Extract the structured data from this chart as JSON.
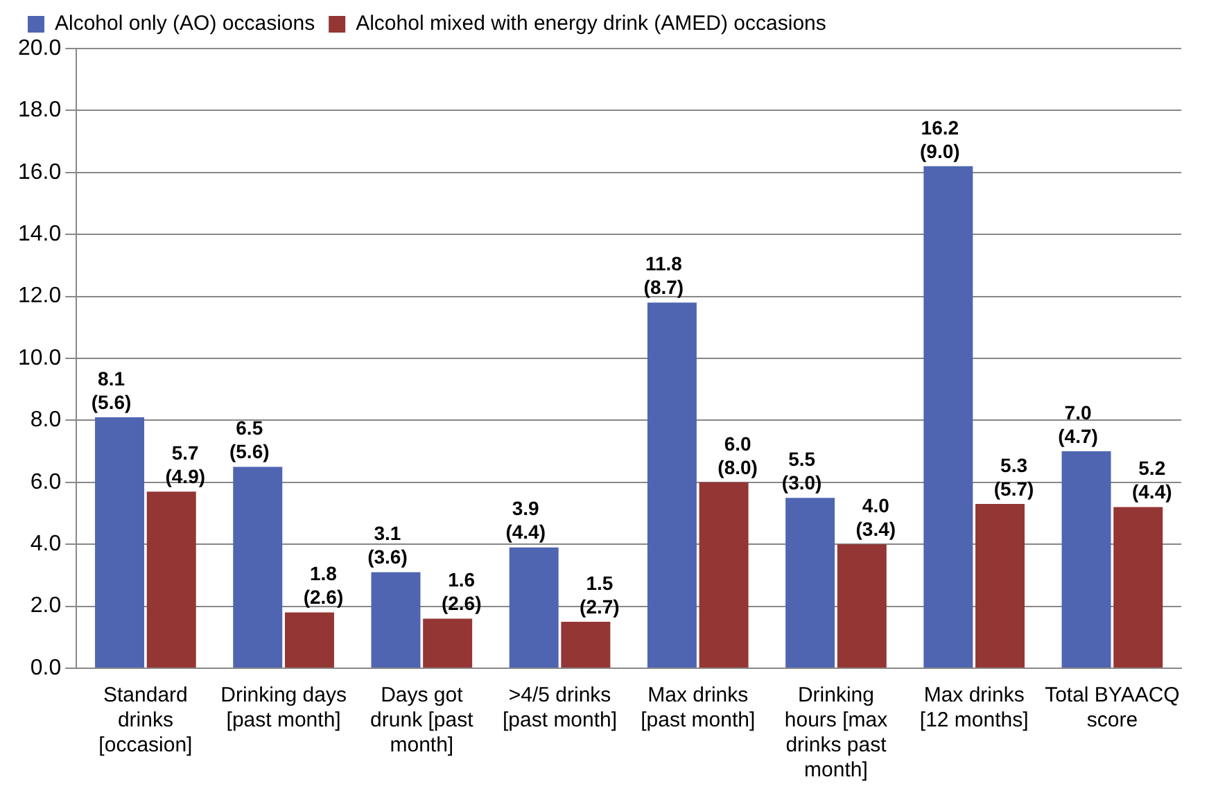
{
  "chart_data": {
    "type": "bar",
    "categories": [
      "Standard drinks [occasion]",
      "Drinking days [past month]",
      "Days got drunk [past month]",
      ">4/5 drinks [past month]",
      "Max drinks [past month]",
      "Drinking hours [max drinks past month]",
      "Max drinks [12 months]",
      "Total BYAACQ score"
    ],
    "series": [
      {
        "name": "Alcohol only (AO) occasions",
        "color": "#4f65b1",
        "values": [
          8.1,
          6.5,
          3.1,
          3.9,
          11.8,
          5.5,
          16.2,
          7.0
        ],
        "value_labels": [
          "8.1 (5.6)",
          "6.5 (5.6)",
          "3.1 (3.6)",
          "3.9 (4.4)",
          "11.8 (8.7)",
          "5.5 (3.0)",
          "16.2 (9.0)",
          "7.0 (4.7)"
        ]
      },
      {
        "name": "Alcohol mixed with energy drink (AMED) occasions",
        "color": "#943634",
        "values": [
          5.7,
          1.8,
          1.6,
          1.5,
          6.0,
          4.0,
          5.3,
          5.2
        ],
        "value_labels": [
          "5.7 (4.9)",
          "1.8 (2.6)",
          "1.6 (2.6)",
          "1.5 (2.7)",
          "6.0 (8.0)",
          "4.0 (3.4)",
          "5.3 (5.7)",
          "5.2 (4.4)"
        ]
      }
    ],
    "ylim": [
      0,
      20
    ],
    "yticks": [
      {
        "value": 0,
        "label": "0.0"
      },
      {
        "value": 2,
        "label": "2.0"
      },
      {
        "value": 4,
        "label": "4.0"
      },
      {
        "value": 6,
        "label": "6.0"
      },
      {
        "value": 8,
        "label": "8.0"
      },
      {
        "value": 10,
        "label": "10.0"
      },
      {
        "value": 12,
        "label": "12.0"
      },
      {
        "value": 14,
        "label": "14.0"
      },
      {
        "value": 16,
        "label": "16.0"
      },
      {
        "value": 18,
        "label": "18.0"
      },
      {
        "value": 20,
        "label": "20.0"
      }
    ],
    "grid": "y",
    "legend": "top left"
  }
}
